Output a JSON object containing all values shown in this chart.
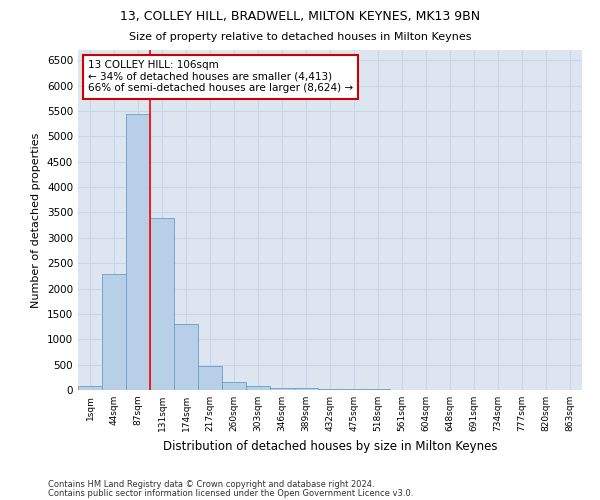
{
  "title1": "13, COLLEY HILL, BRADWELL, MILTON KEYNES, MK13 9BN",
  "title2": "Size of property relative to detached houses in Milton Keynes",
  "xlabel": "Distribution of detached houses by size in Milton Keynes",
  "ylabel": "Number of detached properties",
  "categories": [
    "1sqm",
    "44sqm",
    "87sqm",
    "131sqm",
    "174sqm",
    "217sqm",
    "260sqm",
    "303sqm",
    "346sqm",
    "389sqm",
    "432sqm",
    "475sqm",
    "518sqm",
    "561sqm",
    "604sqm",
    "648sqm",
    "691sqm",
    "734sqm",
    "777sqm",
    "820sqm",
    "863sqm"
  ],
  "bar_values": [
    70,
    2280,
    5430,
    3380,
    1300,
    480,
    165,
    75,
    45,
    30,
    20,
    15,
    10,
    5,
    3,
    2,
    1,
    1,
    1,
    0,
    0
  ],
  "bar_color": "#b8cfe8",
  "bar_edge_color": "#6a9ec5",
  "red_line_x": 2.5,
  "annotation_line1": "13 COLLEY HILL: 106sqm",
  "annotation_line2": "← 34% of detached houses are smaller (4,413)",
  "annotation_line3": "66% of semi-detached houses are larger (8,624) →",
  "annotation_box_color": "#ffffff",
  "annotation_border_color": "#cc0000",
  "ylim": [
    0,
    6700
  ],
  "yticks": [
    0,
    500,
    1000,
    1500,
    2000,
    2500,
    3000,
    3500,
    4000,
    4500,
    5000,
    5500,
    6000,
    6500
  ],
  "grid_color": "#c8d4e8",
  "bg_color": "#dde6f0",
  "footer1": "Contains HM Land Registry data © Crown copyright and database right 2024.",
  "footer2": "Contains public sector information licensed under the Open Government Licence v3.0."
}
